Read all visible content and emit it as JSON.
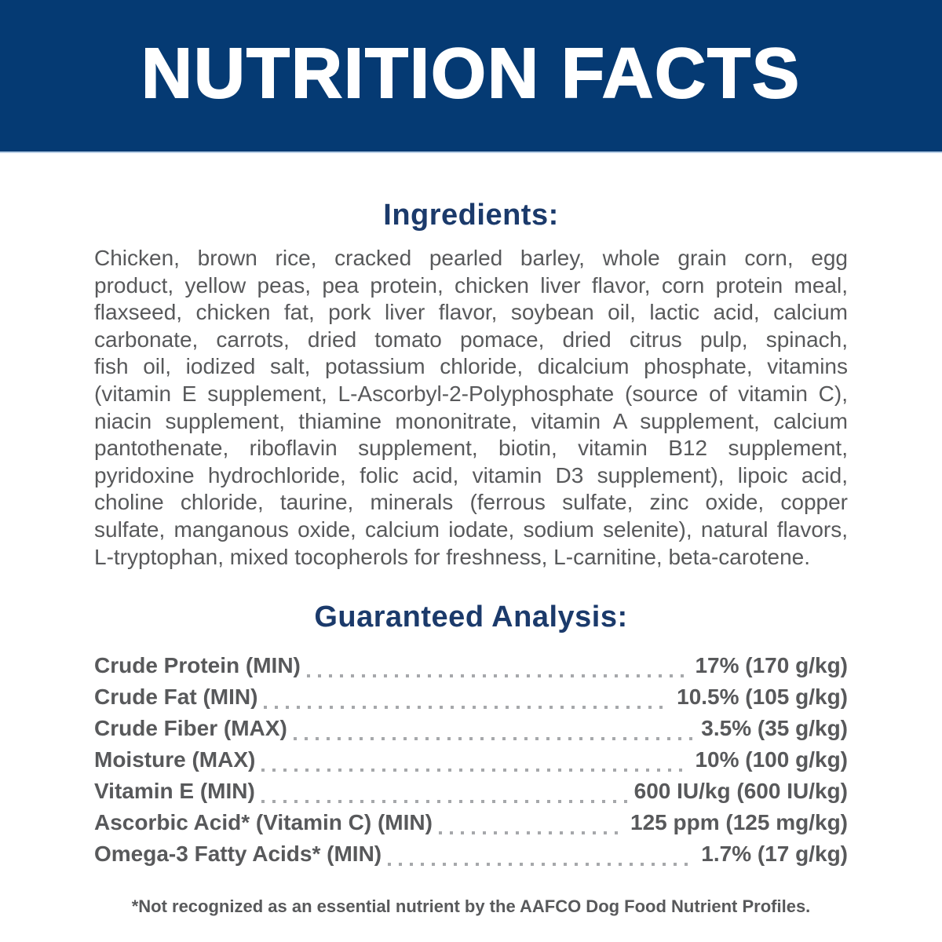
{
  "header": {
    "title": "NUTRITION FACTS"
  },
  "ingredients": {
    "heading": "Ingredients:",
    "full_text": "Chicken, brown rice, cracked pearled barley, whole grain corn, egg product, yellow peas, pea protein, chicken liver flavor, corn protein meal, flaxseed, chicken fat, pork liver flavor, soybean oil, lactic acid, calcium carbonate, carrots, dried tomato pomace, dried citrus pulp, spinach, fish oil, iodized salt, potassium chloride, dicalcium phosphate, vitamins (vitamin E supplement, L-Ascorbyl-2-Polyphosphate (source of vitamin C), niacin supplement, thiamine mononitrate, vitamin A supplement, calcium pantothenate, riboflavin supplement, biotin, vitamin B12 supplement, pyridoxine hydrochloride, folic acid, vitamin D3 supplement), lipoic acid, choline chloride, taurine, minerals (ferrous sulfate, zinc oxide, copper sulfate, manganous oxide, calcium iodate, sodium selenite), natural flavors, L-tryptophan, mixed tocopherols for freshness, L-carnitine, beta-carotene.",
    "lines": [
      "Chicken, brown rice, cracked pearled barley, whole grain corn, egg",
      "product, yellow peas, pea protein, chicken liver flavor, corn protein meal,",
      "flaxseed, chicken fat, pork liver flavor, soybean oil, lactic acid, calcium",
      "carbonate, carrots, dried tomato pomace, dried citrus pulp, spinach,",
      "fish oil, iodized salt, potassium chloride, dicalcium phosphate, vitamins",
      "(vitamin E supplement, L-Ascorbyl-2-Polyphosphate (source of vitamin C),",
      "niacin supplement, thiamine mononitrate, vitamin A supplement, calcium",
      "pantothenate, riboflavin supplement, biotin, vitamin B12 supplement,",
      "pyridoxine hydrochloride, folic acid, vitamin D3 supplement), lipoic acid,",
      "choline chloride, taurine, minerals (ferrous sulfate, zinc oxide, copper",
      "sulfate, manganous oxide, calcium iodate, sodium selenite), natural flavors,",
      "L-tryptophan, mixed tocopherols for freshness, L-carnitine, beta-carotene."
    ]
  },
  "analysis": {
    "heading": "Guaranteed Analysis:",
    "rows": [
      {
        "label": "Crude Protein (MIN)",
        "value": "17% (170 g/kg)"
      },
      {
        "label": "Crude Fat (MIN)",
        "value": "10.5% (105 g/kg)"
      },
      {
        "label": "Crude Fiber (MAX)",
        "value": "3.5% (35 g/kg)"
      },
      {
        "label": "Moisture (MAX)",
        "value": "10% (100 g/kg)"
      },
      {
        "label": "Vitamin E (MIN)",
        "value": "600 IU/kg (600 IU/kg)"
      },
      {
        "label": "Ascorbic Acid* (Vitamin C) (MIN)",
        "value": "125 ppm (125 mg/kg)"
      },
      {
        "label": "Omega-3 Fatty Acids* (MIN)",
        "value": "1.7% (17 g/kg)"
      }
    ]
  },
  "footnote": {
    "text": "*Not recognized as an essential nutrient by the AAFCO Dog Food Nutrient Profiles."
  },
  "colors": {
    "band": "#053a73",
    "heading": "#1b3a6b",
    "text": "#58595b",
    "dots": "#a6a8ab",
    "background": "#ffffff"
  }
}
